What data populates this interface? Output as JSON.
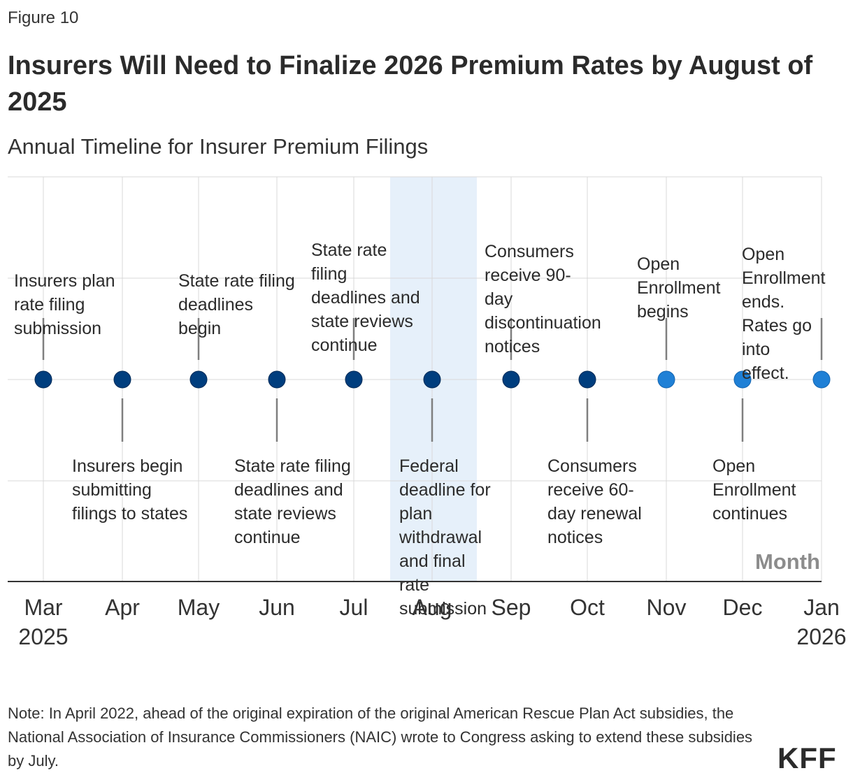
{
  "figure_label": "Figure 10",
  "title": "Insurers Will Need to Finalize 2026 Premium Rates by August of 2025",
  "subtitle": "Annual Timeline for Insurer Premium Filings",
  "note": "Note: In April 2022, ahead of the original expiration of the original American Rescue Plan Act subsidies, the National Association of Insurance Commissioners (NAIC) wrote to Congress asking to extend these subsidies by July.",
  "logo": "KFF",
  "colors": {
    "dark_point": "#003e7e",
    "light_point": "#1f80d6",
    "highlight": "#e6f0fa",
    "stem": "#7f7f7f",
    "grid": "#d9d9d9",
    "axis": "#333333"
  },
  "chart_data": {
    "type": "timeline",
    "xlabel": "Month",
    "highlight_range": [
      "Jul 2025",
      "Aug 2025"
    ],
    "ticks": [
      {
        "label": [
          "Mar",
          "2025"
        ]
      },
      {
        "label": [
          "Apr"
        ]
      },
      {
        "label": [
          "May"
        ]
      },
      {
        "label": [
          "Jun"
        ]
      },
      {
        "label": [
          "Jul"
        ]
      },
      {
        "label": [
          "Aug"
        ]
      },
      {
        "label": [
          "Sep"
        ]
      },
      {
        "label": [
          "Oct"
        ]
      },
      {
        "label": [
          "Nov"
        ]
      },
      {
        "label": [
          "Dec"
        ]
      },
      {
        "label": [
          "Jan",
          "2026"
        ]
      }
    ],
    "events": [
      {
        "month": "Mar 2025",
        "side": "above",
        "style": "dark",
        "text": [
          "Insurers plan",
          "rate filing",
          "submission"
        ]
      },
      {
        "month": "Apr 2025",
        "side": "below",
        "style": "dark",
        "text": [
          "Insurers begin",
          "submitting",
          "filings to states"
        ]
      },
      {
        "month": "May 2025",
        "side": "above",
        "style": "dark",
        "text": [
          "State rate filing",
          "deadlines",
          "begin"
        ]
      },
      {
        "month": "Jun 2025",
        "side": "below",
        "style": "dark",
        "text": [
          "State rate filing",
          "deadlines and",
          "state reviews",
          "continue"
        ]
      },
      {
        "month": "Jul 2025",
        "side": "above",
        "style": "dark",
        "text": [
          "State rate",
          "filing",
          "deadlines and",
          "state reviews",
          "continue"
        ]
      },
      {
        "month": "Aug 2025",
        "side": "below",
        "style": "dark",
        "text": [
          "Federal",
          "deadline for",
          "plan",
          "withdrawal",
          "and final",
          "rate",
          "submission"
        ]
      },
      {
        "month": "Sep 2025",
        "side": "above",
        "style": "dark",
        "text": [
          "Consumers",
          "receive 90-",
          "day",
          "discontinuation",
          "notices"
        ]
      },
      {
        "month": "Oct 2025",
        "side": "below",
        "style": "dark",
        "text": [
          "Consumers",
          "receive 60-",
          "day renewal",
          "notices"
        ]
      },
      {
        "month": "Nov 2025",
        "side": "above",
        "style": "light",
        "text": [
          "Open",
          "Enrollment",
          "begins"
        ]
      },
      {
        "month": "Dec 2025",
        "side": "below",
        "style": "light",
        "text": [
          "Open",
          "Enrollment",
          "continues"
        ]
      },
      {
        "month": "Jan 2026",
        "side": "above",
        "style": "light",
        "text": [
          "Open",
          "Enrollment",
          "ends.",
          "Rates go",
          "into",
          "effect."
        ]
      }
    ]
  }
}
